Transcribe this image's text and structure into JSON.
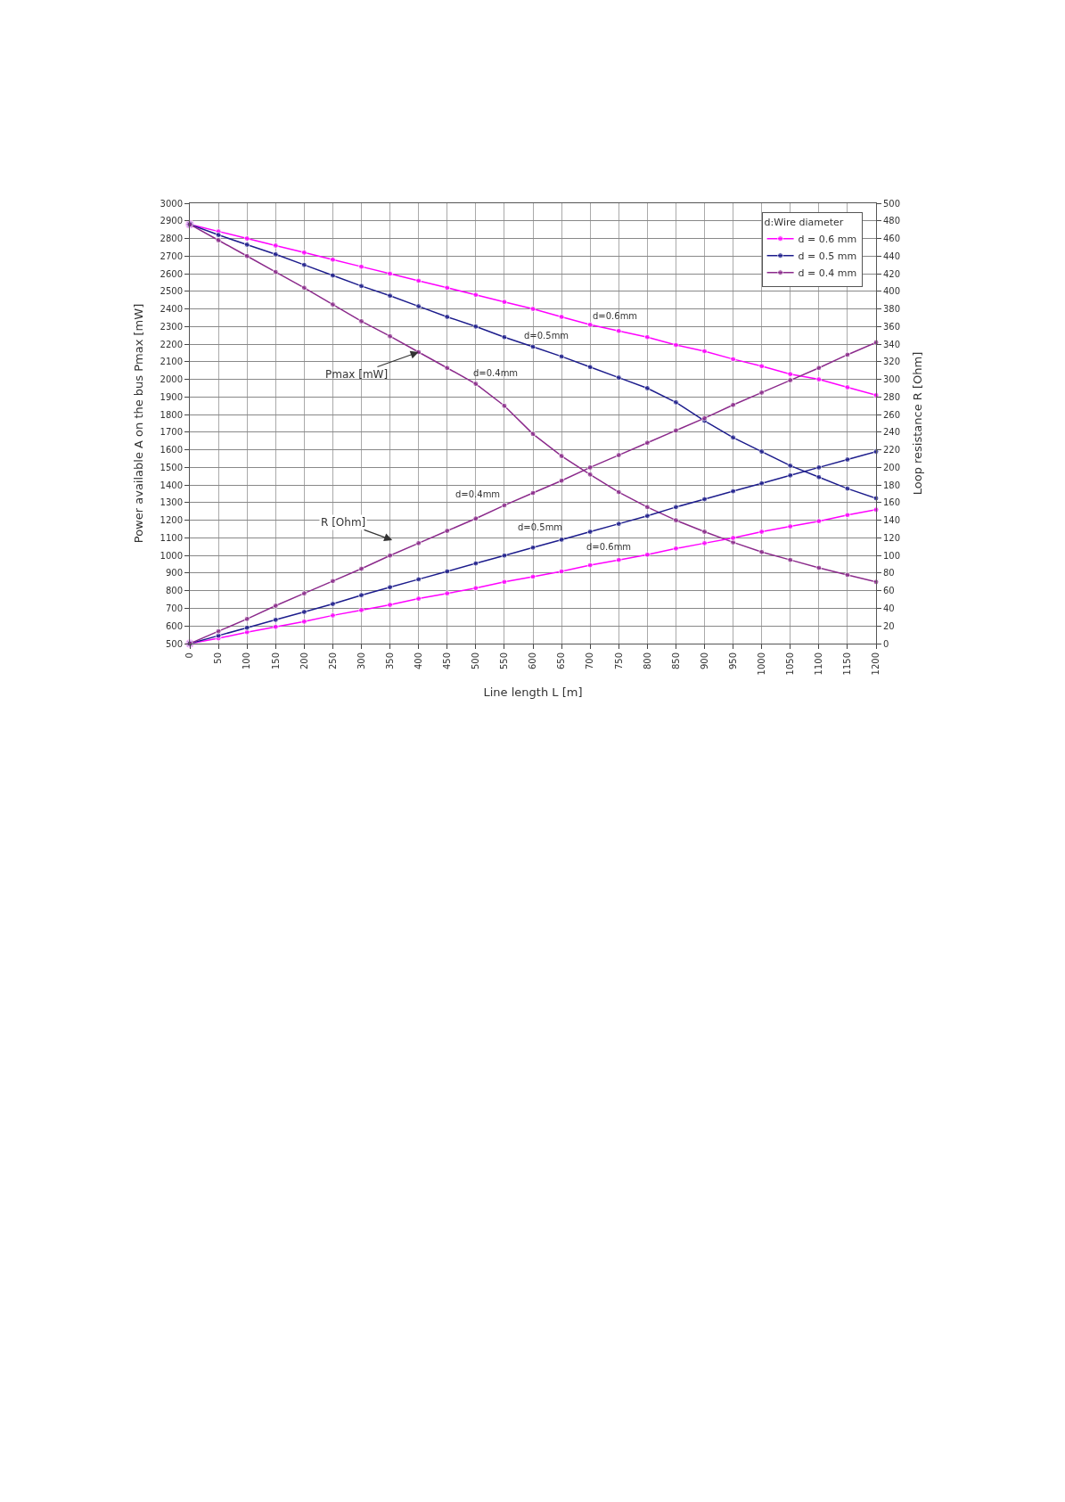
{
  "chart_data": {
    "type": "line",
    "xlabel": "Line length L [m]",
    "ylabel": "Power available A on the bus Pmax [mW]",
    "y2label": "Loop resistance R [Ohm]",
    "legend_title": "d:Wire diameter",
    "x": [
      0,
      50,
      100,
      150,
      200,
      250,
      300,
      350,
      400,
      450,
      500,
      550,
      600,
      650,
      700,
      750,
      800,
      850,
      900,
      950,
      1000,
      1050,
      1100,
      1150,
      1200
    ],
    "series": [
      {
        "name": "d = 0.6 mm",
        "color": "#ff00ff",
        "values": [
          2880,
          2840,
          2800,
          2760,
          2720,
          2680,
          2640,
          2600,
          2560,
          2520,
          2480,
          2440,
          2400,
          2355,
          2310,
          2275,
          2240,
          2195,
          2160,
          2115,
          2075,
          2030,
          2000,
          1955,
          1910
        ]
      },
      {
        "name": "d = 0.5 mm",
        "color": "#1c1c8c",
        "values": [
          2880,
          2820,
          2765,
          2710,
          2650,
          2590,
          2530,
          2475,
          2415,
          2355,
          2300,
          2240,
          2185,
          2130,
          2070,
          2010,
          1950,
          1870,
          1765,
          1670,
          1590,
          1510,
          1445,
          1380,
          1325
        ]
      },
      {
        "name": "d = 0.4 mm",
        "color": "#8b2a8b",
        "values": [
          2880,
          2790,
          2700,
          2610,
          2520,
          2425,
          2330,
          2245,
          2155,
          2065,
          1975,
          1850,
          1690,
          1565,
          1460,
          1360,
          1275,
          1200,
          1135,
          1075,
          1020,
          975,
          930,
          890,
          850
        ]
      },
      {
        "color": "#ff00ff",
        "axis": "y2",
        "values": [
          0,
          6,
          13,
          19,
          25,
          32,
          38,
          44,
          51,
          57,
          63,
          70,
          76,
          82,
          89,
          95,
          101,
          108,
          114,
          120,
          127,
          133,
          139,
          146,
          152
        ]
      },
      {
        "color": "#1c1c8c",
        "axis": "y2",
        "values": [
          0,
          9,
          18,
          27,
          36,
          45,
          55,
          64,
          73,
          82,
          91,
          100,
          109,
          118,
          127,
          136,
          145,
          155,
          164,
          173,
          182,
          191,
          200,
          209,
          218
        ]
      },
      {
        "color": "#8b2a8b",
        "axis": "y2",
        "values": [
          0,
          14,
          28,
          43,
          57,
          71,
          85,
          100,
          114,
          128,
          142,
          157,
          171,
          185,
          200,
          214,
          228,
          242,
          256,
          271,
          285,
          299,
          313,
          328,
          342
        ]
      }
    ],
    "annotations": [
      "d=0.6mm",
      "d=0.5mm",
      "d=0.4mm",
      {
        "text": "Pmax [mW]",
        "x": 400,
        "y": 2155
      },
      "d=0.4mm",
      "d=0.5mm",
      "d=0.6mm",
      "R [Ohm]"
    ],
    "xlim": [
      0,
      1200
    ],
    "xticks": [
      0,
      50,
      100,
      150,
      200,
      250,
      300,
      350,
      400,
      450,
      500,
      550,
      600,
      650,
      700,
      750,
      800,
      850,
      900,
      950,
      1000,
      1050,
      1100,
      1150,
      1200
    ],
    "ylim": [
      500,
      3000
    ],
    "yticks": [
      500,
      600,
      700,
      800,
      900,
      1000,
      1100,
      1200,
      1300,
      1400,
      1500,
      1600,
      1700,
      1800,
      1900,
      2000,
      2100,
      2200,
      2300,
      2400,
      2500,
      2600,
      2700,
      2800,
      2900,
      3000
    ],
    "y2lim": [
      0,
      500
    ],
    "y2ticks": [
      0,
      20,
      40,
      60,
      80,
      100,
      120,
      140,
      160,
      180,
      200,
      220,
      240,
      260,
      280,
      300,
      320,
      340,
      360,
      380,
      400,
      420,
      440,
      460,
      480,
      500
    ],
    "grid": true,
    "legend": "top right",
    "marker": "circle",
    "line_style": "solid"
  }
}
